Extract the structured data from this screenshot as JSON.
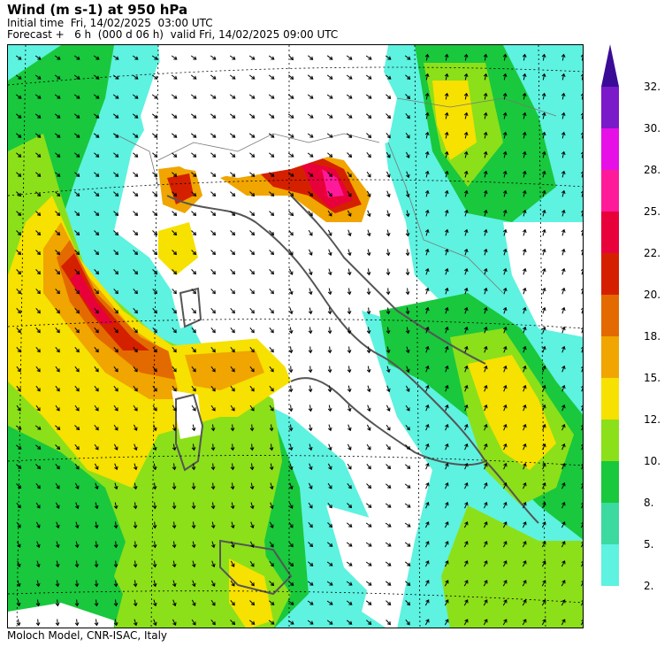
{
  "header": {
    "title": "Wind (m s-1) at 950 hPa",
    "initial_time": "Initial time  Fri, 14/02/2025  03:00 UTC",
    "forecast": "Forecast +   6 h  (000 d 06 h)  valid Fri, 14/02/2025 09:00 UTC"
  },
  "footer": {
    "credit": "Moloch Model, CNR-ISAC, Italy"
  },
  "legend": {
    "top_arrow_color": "#3a0b96",
    "bins": [
      {
        "label": "2.",
        "color": "#5ef2e0"
      },
      {
        "label": "5.",
        "color": "#3cd9a0"
      },
      {
        "label": "8.",
        "color": "#19c83c"
      },
      {
        "label": "10.",
        "color": "#8be01a"
      },
      {
        "label": "12.",
        "color": "#f6e100"
      },
      {
        "label": "15.",
        "color": "#f0a500"
      },
      {
        "label": "18.",
        "color": "#e36a00"
      },
      {
        "label": "20.",
        "color": "#d52000"
      },
      {
        "label": "22.",
        "color": "#e8003a"
      },
      {
        "label": "25.",
        "color": "#ff1a9a"
      },
      {
        "label": "28.",
        "color": "#e610e6"
      },
      {
        "label": "30.",
        "color": "#7a1ac8"
      }
    ],
    "extra_label": "32."
  }
}
